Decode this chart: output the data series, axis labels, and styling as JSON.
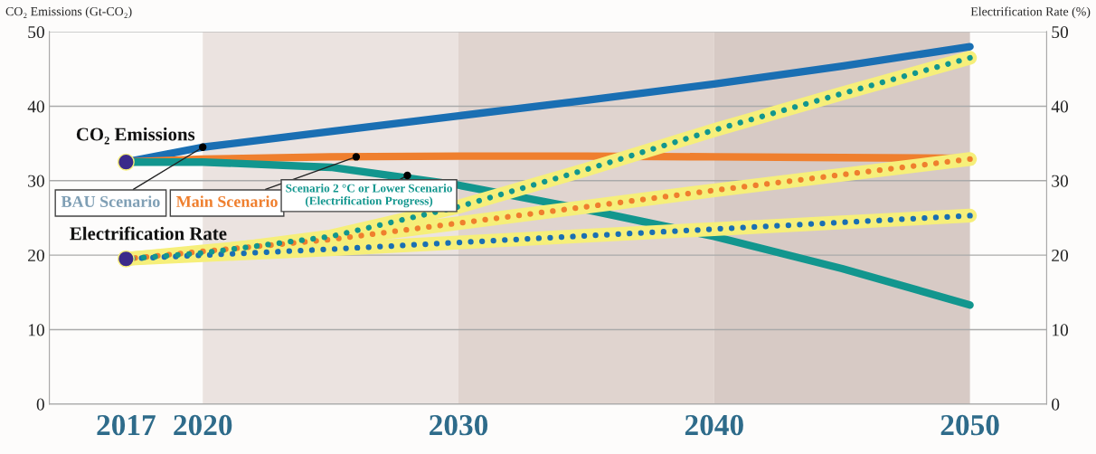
{
  "chart_data": {
    "type": "line",
    "ylabel": "CO₂ Emissions (Gt-CO₂)",
    "y2label": "Electrification Rate (%)",
    "x": [
      2017,
      2020,
      2025,
      2030,
      2035,
      2040,
      2045,
      2050
    ],
    "xlim": [
      2014,
      2053
    ],
    "xticks": [
      2017,
      2020,
      2030,
      2040,
      2050
    ],
    "ylim": [
      0,
      50
    ],
    "yticks": [
      0,
      10,
      20,
      30,
      40,
      50
    ],
    "y2lim": [
      0,
      50
    ],
    "y2ticks": [
      0,
      10,
      20,
      30,
      40,
      50
    ],
    "grid": "y",
    "legend": false,
    "line_style": "solid",
    "marker": "none",
    "bands": [
      {
        "axis": "x",
        "from": 2020,
        "to": 2030,
        "color": "#ebe3e0"
      },
      {
        "axis": "x",
        "from": 2030,
        "to": 2040,
        "color": "#e0d4cf"
      },
      {
        "axis": "x",
        "from": 2040,
        "to": 2050,
        "color": "#d7cac5"
      }
    ],
    "series": [
      {
        "color": "#1a6fb3",
        "values": [
          32.5,
          34.5,
          36.6,
          38.7,
          40.8,
          43.0,
          45.4,
          48.0
        ]
      },
      {
        "color": "#ef7f2e",
        "values": [
          32.5,
          32.9,
          33.2,
          33.3,
          33.3,
          33.2,
          33.1,
          33.0
        ]
      },
      {
        "color": "#12968e",
        "values": [
          32.5,
          32.5,
          31.8,
          29.4,
          26.1,
          22.5,
          18.2,
          13.3
        ]
      },
      {
        "color": "#1a6fb3",
        "axis": "y2",
        "line_style": "dotted",
        "values": [
          19.5,
          20.0,
          20.8,
          21.7,
          22.6,
          23.5,
          24.4,
          25.3
        ]
      },
      {
        "color": "#ef7f2e",
        "axis": "y2",
        "line_style": "dotted",
        "values": [
          19.5,
          20.5,
          22.1,
          24.3,
          26.5,
          28.7,
          30.8,
          32.9
        ]
      },
      {
        "color": "#12968e",
        "axis": "y2",
        "line_style": "dotted",
        "values": [
          19.5,
          20.3,
          22.5,
          26.5,
          31.5,
          36.8,
          41.7,
          46.5
        ]
      },
      {
        "type": "scatter",
        "marker": "circle",
        "color": "#3b2a8a",
        "x": [
          2017,
          2017
        ],
        "values": [
          32.5,
          19.5
        ]
      }
    ],
    "annotations": [
      {
        "text": "CO₂ Emissions",
        "x": 2017,
        "y": 32.5
      },
      {
        "text": "Electrification Rate",
        "x": 2017,
        "y": 19.5
      },
      {
        "text": "BAU Scenario",
        "x": 2020,
        "y": 34.5
      },
      {
        "text": "Main Scenario",
        "x": 2026,
        "y": 33.2
      },
      {
        "text": "Scenario 2 °C or Lower Scenario\n(Electrification Progress)",
        "x": 2028,
        "y": 30.7
      }
    ]
  }
}
